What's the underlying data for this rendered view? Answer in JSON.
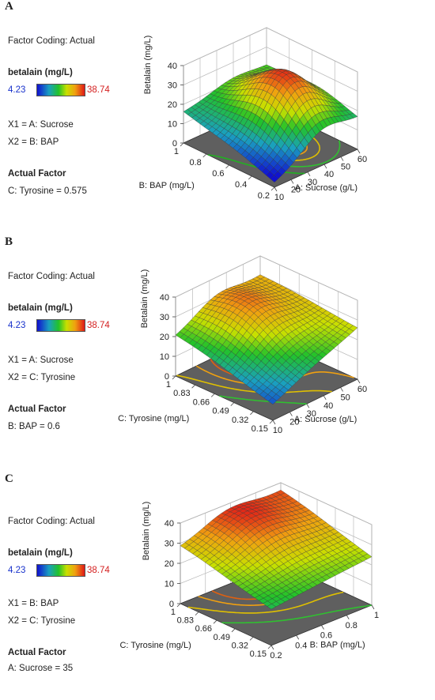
{
  "panels": [
    {
      "letter": "A",
      "factor_coding": "Factor Coding: Actual",
      "response_label": "betalain (mg/L)",
      "range_min": "4.23",
      "range_max": "38.74",
      "x1": "X1 = A: Sucrose",
      "x2": "X2 = B: BAP",
      "actual_factor_title": "Actual Factor",
      "actual_factor_value": "C: Tyrosine = 0.575"
    },
    {
      "letter": "B",
      "factor_coding": "Factor Coding: Actual",
      "response_label": "betalain (mg/L)",
      "range_min": "4.23",
      "range_max": "38.74",
      "x1": "X1 = A: Sucrose",
      "x2": "X2 = C: Tyrosine",
      "actual_factor_title": "Actual Factor",
      "actual_factor_value": "B: BAP = 0.6"
    },
    {
      "letter": "C",
      "factor_coding": "Factor Coding: Actual",
      "response_label": "betalain (mg/L)",
      "range_min": "4.23",
      "range_max": "38.74",
      "x1": "X1 = B: BAP",
      "x2": "X2 = C: Tyrosine",
      "actual_factor_title": "Actual Factor",
      "actual_factor_value": "A: Sucrose = 35"
    }
  ],
  "chart_data": [
    {
      "type": "surface3d",
      "zlabel": "Betalain (mg/L)",
      "zticks": [
        "0",
        "10",
        "20",
        "30",
        "40"
      ],
      "zlim": [
        0,
        40
      ],
      "right_axis": {
        "label": "A: Sucrose (g/L)",
        "ticks": [
          "10",
          "20",
          "30",
          "40",
          "50",
          "60"
        ],
        "range": [
          10,
          60
        ]
      },
      "left_axis": {
        "label": "B: BAP (mg/L)",
        "ticks": [
          "0.2",
          "0.4",
          "0.6",
          "0.8",
          "1"
        ],
        "range": [
          0.2,
          1
        ]
      },
      "surface_corners": {
        "low_low": 2,
        "high_low": 15,
        "low_high": 16,
        "high_high": 20
      },
      "surface_peak": 37.5,
      "peak_position": [
        0.6,
        0.45
      ],
      "contour_colors": [
        "#22b022",
        "#30c030",
        "#e0c000",
        "#f0a010"
      ]
    },
    {
      "type": "surface3d",
      "zlabel": "Betalain (mg/L)",
      "zticks": [
        "0",
        "10",
        "20",
        "30",
        "40"
      ],
      "zlim": [
        0,
        40
      ],
      "right_axis": {
        "label": "A: Sucrose (g/L)",
        "ticks": [
          "10",
          "20",
          "30",
          "40",
          "50",
          "60"
        ],
        "range": [
          10,
          60
        ]
      },
      "left_axis": {
        "label": "C: Tyrosine (mg/L)",
        "ticks": [
          "0.15",
          "0.32",
          "0.49",
          "0.66",
          "0.83",
          "1"
        ],
        "range": [
          0.15,
          1
        ]
      },
      "surface_corners": {
        "low_low": 8,
        "high_low": 26,
        "low_high": 20,
        "high_high": 30
      },
      "surface_peak": 34,
      "peak_position": [
        0.55,
        0.75
      ],
      "contour_colors": [
        "#30c030",
        "#e0c000",
        "#f0a010",
        "#e06010"
      ]
    },
    {
      "type": "surface3d",
      "zlabel": "Betalain (mg/L)",
      "zticks": [
        "0",
        "10",
        "20",
        "30",
        "40"
      ],
      "zlim": [
        0,
        40
      ],
      "right_axis": {
        "label": "B: BAP (mg/L)",
        "ticks": [
          "0.2",
          "0.4",
          "0.6",
          "0.8",
          "1"
        ],
        "range": [
          0.2,
          1
        ]
      },
      "left_axis": {
        "label": "C: Tyrosine (mg/L)",
        "ticks": [
          "0.15",
          "0.32",
          "0.49",
          "0.66",
          "0.83",
          "1"
        ],
        "range": [
          0.15,
          1
        ]
      },
      "surface_corners": {
        "low_low": 18,
        "high_low": 24,
        "low_high": 28,
        "high_high": 36
      },
      "surface_peak": 38,
      "peak_position": [
        0.55,
        0.9
      ],
      "contour_colors": [
        "#30c030",
        "#e0c000",
        "#f0a010",
        "#e06010"
      ]
    }
  ]
}
